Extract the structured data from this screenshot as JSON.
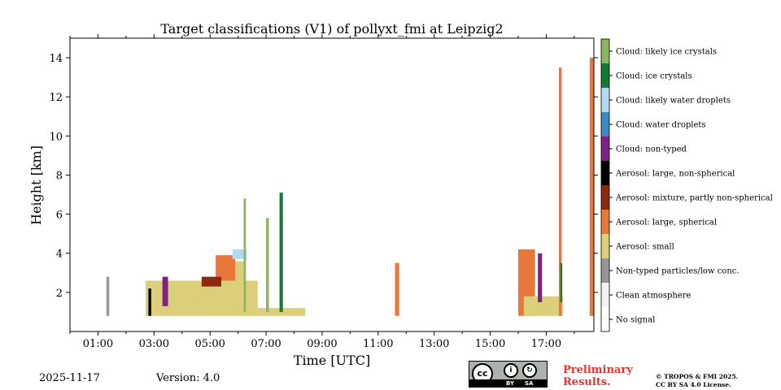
{
  "chart_data": {
    "type": "heatmap",
    "title": "Target classifications (V1) of pollyxt_fmi at Leipzig2",
    "xlabel": "Time [UTC]",
    "ylabel": "Height [km]",
    "xlim": [
      0,
      18.7
    ],
    "ylim": [
      0,
      15
    ],
    "x_ticks": [
      1,
      3,
      5,
      7,
      9,
      11,
      13,
      15,
      17
    ],
    "x_tick_labels": [
      "01:00",
      "03:00",
      "05:00",
      "07:00",
      "09:00",
      "11:00",
      "13:00",
      "15:00",
      "17:00"
    ],
    "y_ticks": [
      2,
      4,
      6,
      8,
      10,
      12,
      14
    ],
    "y_tick_labels": [
      "2",
      "4",
      "6",
      "8",
      "10",
      "12",
      "14"
    ],
    "classes": [
      {
        "label": "No signal",
        "color": "#ffffff"
      },
      {
        "label": "Clean atmosphere",
        "color": "#f2f2f2"
      },
      {
        "label": "Non-typed particles/low conc.",
        "color": "#969696"
      },
      {
        "label": "Aerosol: small",
        "color": "#dccf7c"
      },
      {
        "label": "Aerosol: large, spherical",
        "color": "#e8773c"
      },
      {
        "label": "Aerosol: mixture, partly non-spherical",
        "color": "#8b2a0f"
      },
      {
        "label": "Aerosol: large, non-spherical",
        "color": "#000000"
      },
      {
        "label": "Cloud: non-typed",
        "color": "#7d2183"
      },
      {
        "label": "Cloud: water droplets",
        "color": "#3b8ac4"
      },
      {
        "label": "Cloud: likely water droplets",
        "color": "#b5d9f3"
      },
      {
        "label": "Cloud: ice crystals",
        "color": "#157a34"
      },
      {
        "label": "Cloud: likely ice crystals",
        "color": "#8bb55f"
      }
    ],
    "regions": [
      {
        "class": "Aerosol: small",
        "x0": 2.7,
        "x1": 6.7,
        "y0": 0.8,
        "y1": 2.6
      },
      {
        "class": "Aerosol: small",
        "x0": 5.3,
        "x1": 6.2,
        "y0": 0.8,
        "y1": 3.6
      },
      {
        "class": "Aerosol: small",
        "x0": 6.7,
        "x1": 8.4,
        "y0": 0.8,
        "y1": 1.2
      },
      {
        "class": "Aerosol: large, spherical",
        "x0": 5.2,
        "x1": 5.9,
        "y0": 2.6,
        "y1": 3.9
      },
      {
        "class": "Aerosol: mixture, partly non-spherical",
        "x0": 4.7,
        "x1": 5.4,
        "y0": 2.3,
        "y1": 2.8
      },
      {
        "class": "Cloud: likely water droplets",
        "x0": 5.8,
        "x1": 6.3,
        "y0": 3.7,
        "y1": 4.2
      },
      {
        "class": "Cloud: likely ice crystals",
        "x0": 6.2,
        "x1": 6.28,
        "y0": 1.0,
        "y1": 6.8
      },
      {
        "class": "Cloud: ice crystals",
        "x0": 7.48,
        "x1": 7.6,
        "y0": 1.0,
        "y1": 7.1
      },
      {
        "class": "Cloud: likely ice crystals",
        "x0": 7.0,
        "x1": 7.1,
        "y0": 1.0,
        "y1": 5.8
      },
      {
        "class": "Cloud: non-typed",
        "x0": 3.3,
        "x1": 3.5,
        "y0": 1.3,
        "y1": 2.8
      },
      {
        "class": "Aerosol: large, non-spherical",
        "x0": 2.8,
        "x1": 2.9,
        "y0": 0.8,
        "y1": 2.2
      },
      {
        "class": "Non-typed particles/low conc.",
        "x0": 1.3,
        "x1": 1.4,
        "y0": 0.8,
        "y1": 2.8
      },
      {
        "class": "Aerosol: large, spherical",
        "x0": 11.6,
        "x1": 11.75,
        "y0": 0.8,
        "y1": 3.5
      },
      {
        "class": "Aerosol: large, spherical",
        "x0": 16.0,
        "x1": 16.6,
        "y0": 0.8,
        "y1": 4.2
      },
      {
        "class": "Aerosol: small",
        "x0": 16.2,
        "x1": 17.6,
        "y0": 0.8,
        "y1": 1.8
      },
      {
        "class": "Aerosol: large, spherical",
        "x0": 17.45,
        "x1": 17.55,
        "y0": 0.8,
        "y1": 13.5
      },
      {
        "class": "Aerosol: large, spherical",
        "x0": 18.55,
        "x1": 18.7,
        "y0": 0.8,
        "y1": 14.0
      },
      {
        "class": "Cloud: non-typed",
        "x0": 16.7,
        "x1": 16.85,
        "y0": 1.5,
        "y1": 4.0
      },
      {
        "class": "Cloud: ice crystals",
        "x0": 17.5,
        "x1": 17.57,
        "y0": 1.5,
        "y1": 3.5
      }
    ]
  },
  "legend_labels_top_to_bottom": [
    "Cloud: likely ice crystals",
    "Cloud: ice crystals",
    "Cloud: likely water droplets",
    "Cloud: water droplets",
    "Cloud: non-typed",
    "Aerosol: large, non-spherical",
    "Aerosol: mixture, partly non-spherical",
    "Aerosol: large, spherical",
    "Aerosol: small",
    "Non-typed particles/low conc.",
    "Clean atmosphere",
    "No signal"
  ],
  "footer": {
    "date": "2025-11-17",
    "version": "Version: 4.0",
    "preliminary_line1": "Preliminary",
    "preliminary_line2": "Results.",
    "copyright_line1": "© TROPOS & FMI 2025.",
    "copyright_line2": "CC BY SA 4.0 License.",
    "license_badge": {
      "cc": "cc",
      "by": "BY",
      "sa": "SA"
    }
  }
}
